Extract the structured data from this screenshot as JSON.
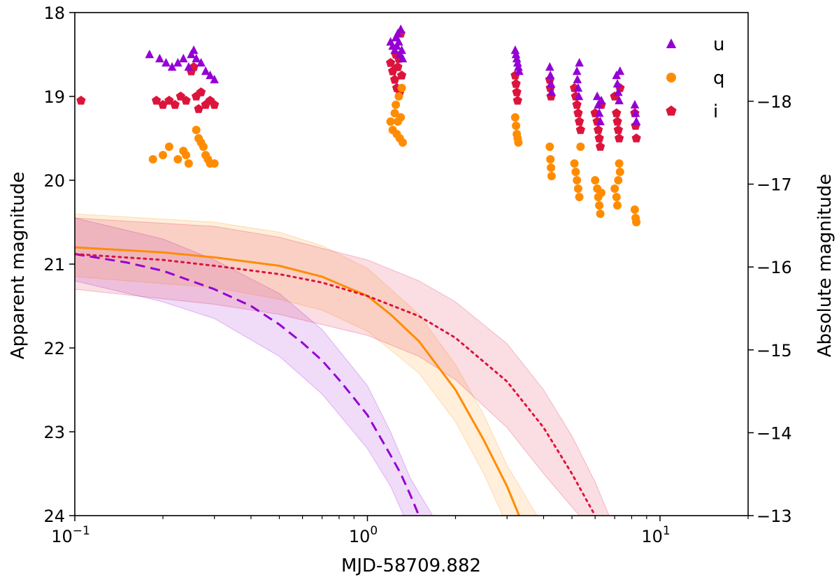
{
  "chart_data": {
    "type": "scatter",
    "xlabel": "MJD-58709.882",
    "ylabel": "Apparent magnitude",
    "y2label": "Absolute magnitude",
    "xscale": "log",
    "xlim": [
      0.1,
      20
    ],
    "ylim": [
      24,
      18
    ],
    "y2lim": [
      -13.0,
      -19.07
    ],
    "x_ticks": [
      {
        "value": 0.1,
        "base": "10",
        "exp": "−1"
      },
      {
        "value": 1,
        "base": "10",
        "exp": "0"
      },
      {
        "value": 10,
        "base": "10",
        "exp": "1"
      }
    ],
    "y_ticks": [
      {
        "value": 18,
        "label": "18"
      },
      {
        "value": 19,
        "label": "19"
      },
      {
        "value": 20,
        "label": "20"
      },
      {
        "value": 21,
        "label": "21"
      },
      {
        "value": 22,
        "label": "22"
      },
      {
        "value": 23,
        "label": "23"
      },
      {
        "value": 24,
        "label": "24"
      }
    ],
    "y2_ticks": [
      {
        "value": -18,
        "label": "−18"
      },
      {
        "value": -17,
        "label": "−17"
      },
      {
        "value": -16,
        "label": "−16"
      },
      {
        "value": -15,
        "label": "−15"
      },
      {
        "value": -14,
        "label": "−14"
      },
      {
        "value": -13,
        "label": "−13"
      }
    ],
    "colors": {
      "u": "#9400d3",
      "q": "#ff8c00",
      "i": "#dc143c"
    },
    "legend": [
      {
        "label": "u",
        "marker": "triangle",
        "color": "#9400d3"
      },
      {
        "label": "q",
        "marker": "circle",
        "color": "#ff8c00"
      },
      {
        "label": "i",
        "marker": "pentagon",
        "color": "#dc143c"
      }
    ],
    "scatter_series": [
      {
        "name": "u",
        "marker": "triangle",
        "color": "#9400d3",
        "points": [
          [
            0.18,
            18.5
          ],
          [
            0.195,
            18.55
          ],
          [
            0.205,
            18.6
          ],
          [
            0.215,
            18.65
          ],
          [
            0.225,
            18.6
          ],
          [
            0.235,
            18.55
          ],
          [
            0.245,
            18.65
          ],
          [
            0.25,
            18.5
          ],
          [
            0.255,
            18.45
          ],
          [
            0.26,
            18.55
          ],
          [
            0.27,
            18.6
          ],
          [
            0.28,
            18.7
          ],
          [
            0.29,
            18.75
          ],
          [
            0.3,
            18.8
          ],
          [
            1.2,
            18.35
          ],
          [
            1.22,
            18.4
          ],
          [
            1.24,
            18.45
          ],
          [
            1.25,
            18.3
          ],
          [
            1.26,
            18.4
          ],
          [
            1.27,
            18.25
          ],
          [
            1.28,
            18.35
          ],
          [
            1.29,
            18.5
          ],
          [
            1.3,
            18.2
          ],
          [
            1.31,
            18.45
          ],
          [
            1.32,
            18.55
          ],
          [
            3.2,
            18.45
          ],
          [
            3.22,
            18.5
          ],
          [
            3.24,
            18.55
          ],
          [
            3.26,
            18.6
          ],
          [
            3.28,
            18.65
          ],
          [
            3.3,
            18.7
          ],
          [
            4.2,
            18.65
          ],
          [
            4.22,
            18.75
          ],
          [
            4.24,
            18.85
          ],
          [
            4.26,
            18.95
          ],
          [
            5.2,
            18.7
          ],
          [
            5.22,
            18.8
          ],
          [
            5.25,
            18.9
          ],
          [
            5.28,
            19.0
          ],
          [
            5.3,
            18.6
          ],
          [
            6.1,
            19.0
          ],
          [
            6.15,
            19.1
          ],
          [
            6.2,
            19.2
          ],
          [
            6.25,
            19.3
          ],
          [
            6.3,
            19.05
          ],
          [
            7.1,
            18.75
          ],
          [
            7.15,
            18.85
          ],
          [
            7.2,
            18.95
          ],
          [
            7.25,
            19.05
          ],
          [
            7.3,
            18.7
          ],
          [
            8.2,
            19.1
          ],
          [
            8.25,
            19.2
          ],
          [
            8.3,
            19.3
          ]
        ]
      },
      {
        "name": "q",
        "marker": "circle",
        "color": "#ff8c00",
        "points": [
          [
            0.185,
            19.75
          ],
          [
            0.2,
            19.7
          ],
          [
            0.21,
            19.6
          ],
          [
            0.225,
            19.75
          ],
          [
            0.235,
            19.65
          ],
          [
            0.24,
            19.7
          ],
          [
            0.245,
            19.8
          ],
          [
            0.26,
            19.4
          ],
          [
            0.265,
            19.5
          ],
          [
            0.27,
            19.55
          ],
          [
            0.275,
            19.6
          ],
          [
            0.28,
            19.7
          ],
          [
            0.285,
            19.75
          ],
          [
            0.29,
            19.8
          ],
          [
            0.3,
            19.8
          ],
          [
            1.2,
            19.3
          ],
          [
            1.22,
            19.4
          ],
          [
            1.24,
            19.2
          ],
          [
            1.25,
            19.1
          ],
          [
            1.26,
            19.45
          ],
          [
            1.27,
            19.3
          ],
          [
            1.28,
            19.0
          ],
          [
            1.29,
            19.5
          ],
          [
            1.3,
            19.25
          ],
          [
            1.31,
            18.9
          ],
          [
            1.32,
            19.55
          ],
          [
            3.2,
            19.25
          ],
          [
            3.22,
            19.35
          ],
          [
            3.24,
            19.45
          ],
          [
            3.26,
            19.5
          ],
          [
            3.28,
            19.55
          ],
          [
            4.2,
            19.6
          ],
          [
            4.22,
            19.75
          ],
          [
            4.24,
            19.85
          ],
          [
            4.26,
            19.95
          ],
          [
            5.1,
            19.8
          ],
          [
            5.15,
            19.9
          ],
          [
            5.2,
            20.0
          ],
          [
            5.25,
            20.1
          ],
          [
            5.3,
            20.2
          ],
          [
            5.35,
            19.6
          ],
          [
            6.0,
            20.0
          ],
          [
            6.1,
            20.1
          ],
          [
            6.15,
            20.2
          ],
          [
            6.2,
            20.3
          ],
          [
            6.25,
            20.4
          ],
          [
            6.3,
            20.15
          ],
          [
            7.0,
            20.1
          ],
          [
            7.1,
            20.2
          ],
          [
            7.15,
            20.3
          ],
          [
            7.2,
            20.0
          ],
          [
            7.25,
            19.8
          ],
          [
            7.3,
            19.9
          ],
          [
            8.2,
            20.35
          ],
          [
            8.25,
            20.45
          ],
          [
            8.3,
            20.5
          ]
        ]
      },
      {
        "name": "i",
        "marker": "pentagon",
        "color": "#dc143c",
        "points": [
          [
            0.105,
            19.05
          ],
          [
            0.19,
            19.05
          ],
          [
            0.2,
            19.1
          ],
          [
            0.21,
            19.05
          ],
          [
            0.22,
            19.1
          ],
          [
            0.23,
            19.0
          ],
          [
            0.24,
            19.05
          ],
          [
            0.25,
            18.7
          ],
          [
            0.255,
            18.65
          ],
          [
            0.26,
            19.0
          ],
          [
            0.265,
            19.15
          ],
          [
            0.27,
            18.95
          ],
          [
            0.28,
            19.1
          ],
          [
            0.29,
            19.05
          ],
          [
            0.3,
            19.1
          ],
          [
            1.2,
            18.6
          ],
          [
            1.22,
            18.7
          ],
          [
            1.24,
            18.8
          ],
          [
            1.25,
            18.5
          ],
          [
            1.26,
            18.9
          ],
          [
            1.27,
            18.65
          ],
          [
            1.28,
            18.55
          ],
          [
            1.29,
            18.95
          ],
          [
            1.3,
            18.25
          ],
          [
            1.31,
            18.75
          ],
          [
            3.2,
            18.75
          ],
          [
            3.22,
            18.85
          ],
          [
            3.24,
            18.95
          ],
          [
            3.26,
            19.05
          ],
          [
            4.2,
            18.8
          ],
          [
            4.22,
            18.9
          ],
          [
            4.24,
            19.0
          ],
          [
            5.1,
            18.9
          ],
          [
            5.15,
            19.0
          ],
          [
            5.2,
            19.1
          ],
          [
            5.25,
            19.2
          ],
          [
            5.3,
            19.3
          ],
          [
            5.35,
            19.4
          ],
          [
            6.0,
            19.2
          ],
          [
            6.1,
            19.3
          ],
          [
            6.15,
            19.4
          ],
          [
            6.2,
            19.5
          ],
          [
            6.25,
            19.6
          ],
          [
            6.3,
            19.1
          ],
          [
            7.0,
            19.0
          ],
          [
            7.1,
            19.2
          ],
          [
            7.15,
            19.3
          ],
          [
            7.2,
            19.4
          ],
          [
            7.25,
            19.5
          ],
          [
            7.3,
            18.9
          ],
          [
            8.2,
            19.2
          ],
          [
            8.25,
            19.35
          ],
          [
            8.3,
            19.5
          ]
        ]
      }
    ],
    "line_series": [
      {
        "name": "u model",
        "color": "#9400d3",
        "style": "dashed",
        "points": [
          [
            0.1,
            20.88
          ],
          [
            0.15,
            20.98
          ],
          [
            0.2,
            21.08
          ],
          [
            0.3,
            21.3
          ],
          [
            0.4,
            21.5
          ],
          [
            0.5,
            21.72
          ],
          [
            0.6,
            21.94
          ],
          [
            0.7,
            22.15
          ],
          [
            0.8,
            22.38
          ],
          [
            0.9,
            22.6
          ],
          [
            1.0,
            22.8
          ],
          [
            1.1,
            23.05
          ],
          [
            1.2,
            23.28
          ],
          [
            1.3,
            23.5
          ],
          [
            1.4,
            23.75
          ],
          [
            1.5,
            24.0
          ]
        ],
        "band": {
          "upper": [
            [
              0.1,
              20.45
            ],
            [
              0.2,
              20.7
            ],
            [
              0.3,
              20.95
            ],
            [
              0.5,
              21.35
            ],
            [
              0.7,
              21.78
            ],
            [
              1.0,
              22.45
            ],
            [
              1.2,
              23.0
            ],
            [
              1.4,
              23.55
            ],
            [
              1.67,
              24.0
            ]
          ],
          "lower": [
            [
              0.1,
              21.2
            ],
            [
              0.2,
              21.45
            ],
            [
              0.3,
              21.65
            ],
            [
              0.5,
              22.1
            ],
            [
              0.7,
              22.55
            ],
            [
              1.0,
              23.2
            ],
            [
              1.2,
              23.65
            ],
            [
              1.33,
              24.0
            ]
          ]
        }
      },
      {
        "name": "q model",
        "color": "#ff8c00",
        "style": "solid",
        "points": [
          [
            0.1,
            20.8
          ],
          [
            0.2,
            20.86
          ],
          [
            0.3,
            20.92
          ],
          [
            0.5,
            21.02
          ],
          [
            0.7,
            21.15
          ],
          [
            1.0,
            21.38
          ],
          [
            1.2,
            21.6
          ],
          [
            1.5,
            21.92
          ],
          [
            2.0,
            22.5
          ],
          [
            2.5,
            23.1
          ],
          [
            3.0,
            23.65
          ],
          [
            3.3,
            24.0
          ]
        ],
        "band": {
          "upper": [
            [
              0.1,
              20.4
            ],
            [
              0.3,
              20.5
            ],
            [
              0.5,
              20.62
            ],
            [
              0.7,
              20.78
            ],
            [
              1.0,
              21.05
            ],
            [
              1.5,
              21.6
            ],
            [
              2.0,
              22.2
            ],
            [
              2.5,
              22.8
            ],
            [
              3.0,
              23.4
            ],
            [
              3.8,
              24.0
            ]
          ],
          "lower": [
            [
              0.1,
              21.15
            ],
            [
              0.3,
              21.28
            ],
            [
              0.5,
              21.42
            ],
            [
              0.7,
              21.55
            ],
            [
              1.0,
              21.8
            ],
            [
              1.5,
              22.3
            ],
            [
              2.0,
              22.88
            ],
            [
              2.5,
              23.5
            ],
            [
              2.9,
              24.0
            ]
          ]
        }
      },
      {
        "name": "i model",
        "color": "#dc143c",
        "style": "dotted",
        "points": [
          [
            0.1,
            20.88
          ],
          [
            0.2,
            20.95
          ],
          [
            0.3,
            21.02
          ],
          [
            0.5,
            21.12
          ],
          [
            0.7,
            21.22
          ],
          [
            1.0,
            21.38
          ],
          [
            1.5,
            21.62
          ],
          [
            2.0,
            21.88
          ],
          [
            3.0,
            22.4
          ],
          [
            4.0,
            22.95
          ],
          [
            5.0,
            23.5
          ],
          [
            6.0,
            24.0
          ]
        ],
        "band": {
          "upper": [
            [
              0.1,
              20.45
            ],
            [
              0.3,
              20.55
            ],
            [
              0.5,
              20.68
            ],
            [
              1.0,
              20.95
            ],
            [
              1.5,
              21.2
            ],
            [
              2.0,
              21.45
            ],
            [
              3.0,
              21.95
            ],
            [
              4.0,
              22.5
            ],
            [
              5.0,
              23.05
            ],
            [
              6.0,
              23.6
            ],
            [
              6.7,
              24.0
            ]
          ],
          "lower": [
            [
              0.1,
              21.3
            ],
            [
              0.3,
              21.48
            ],
            [
              0.5,
              21.6
            ],
            [
              1.0,
              21.85
            ],
            [
              1.5,
              22.1
            ],
            [
              2.0,
              22.38
            ],
            [
              3.0,
              22.95
            ],
            [
              4.0,
              23.5
            ],
            [
              5.3,
              24.0
            ]
          ]
        }
      }
    ]
  }
}
